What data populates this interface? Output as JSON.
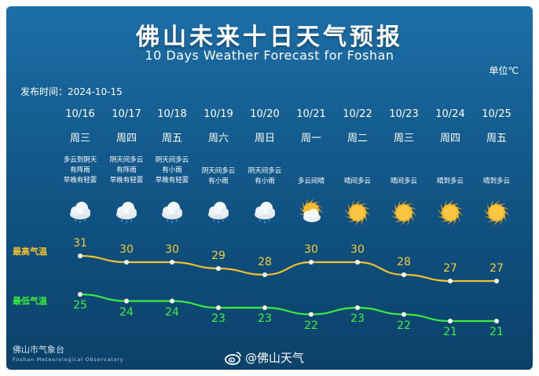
{
  "title_cn": "佛山未来十日天气预报",
  "title_en": "10 Days Weather Forecast for Foshan",
  "unit": "单位℃",
  "publish_time": "发布时间：2024-10-15",
  "high_label": "最高气温",
  "low_label": "最低气温",
  "footer_cn": "佛山市气象台",
  "footer_en": "Foshan Meteorological Observatory",
  "watermark": "@佛山天气",
  "colors": {
    "high": "#f2c12e",
    "low": "#3bee3b"
  },
  "days": [
    {
      "date": "10/16",
      "weekday": "周三",
      "desc": [
        "多云到阴天",
        "有阵雨",
        "早晚有轻雾"
      ],
      "icon": "cloud-rain-icon"
    },
    {
      "date": "10/17",
      "weekday": "周四",
      "desc": [
        "阴天间多云",
        "有阵雨",
        "早晚有轻雾"
      ],
      "icon": "cloud-rain-icon"
    },
    {
      "date": "10/18",
      "weekday": "周五",
      "desc": [
        "阴天间多云",
        "有小雨",
        "早晚有轻雾"
      ],
      "icon": "cloud-rain-icon"
    },
    {
      "date": "10/19",
      "weekday": "周六",
      "desc": [
        "阴天间多云",
        "有小雨"
      ],
      "icon": "cloud-rain-icon"
    },
    {
      "date": "10/20",
      "weekday": "周日",
      "desc": [
        "阴天间多云",
        "有小雨"
      ],
      "icon": "cloud-rain-icon"
    },
    {
      "date": "10/21",
      "weekday": "周一",
      "desc": [
        "多云间晴"
      ],
      "icon": "sun-cloud-icon"
    },
    {
      "date": "10/22",
      "weekday": "周二",
      "desc": [
        "晴间多云"
      ],
      "icon": "sun-icon"
    },
    {
      "date": "10/23",
      "weekday": "周三",
      "desc": [
        "晴间多云"
      ],
      "icon": "sun-icon"
    },
    {
      "date": "10/24",
      "weekday": "周四",
      "desc": [
        "晴到多云"
      ],
      "icon": "sun-icon"
    },
    {
      "date": "10/25",
      "weekday": "周五",
      "desc": [
        "晴到多云"
      ],
      "icon": "sun-icon"
    }
  ],
  "chart_data": {
    "type": "line",
    "x": [
      "10/16",
      "10/17",
      "10/18",
      "10/19",
      "10/20",
      "10/21",
      "10/22",
      "10/23",
      "10/24",
      "10/25"
    ],
    "series": [
      {
        "name": "最高气温",
        "values": [
          31,
          30,
          30,
          29,
          28,
          30,
          30,
          28,
          27,
          27
        ]
      },
      {
        "name": "最低气温",
        "values": [
          25,
          24,
          24,
          23,
          23,
          22,
          23,
          22,
          21,
          21
        ]
      }
    ]
  }
}
